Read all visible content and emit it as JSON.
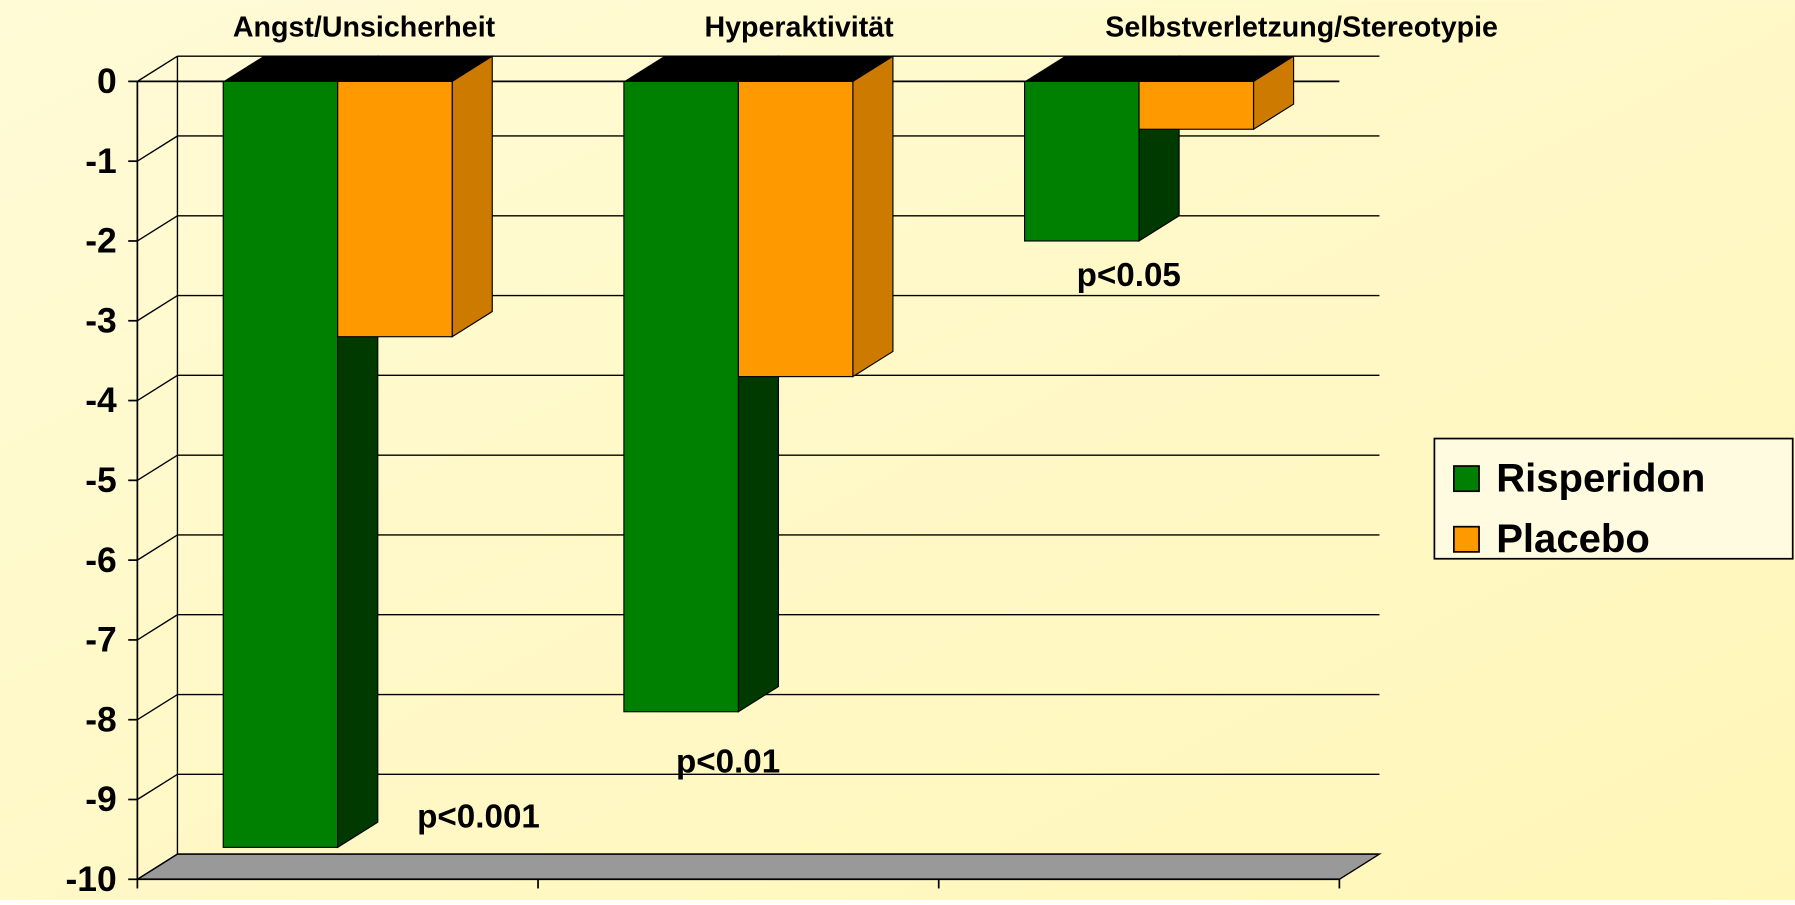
{
  "chart_data": {
    "type": "bar3d",
    "categories": [
      "Angst/Unsicherheit",
      "Hyperaktivität",
      "Selbstverletzung/Stereotypie"
    ],
    "series": [
      {
        "name": "Risperidon",
        "color": "#008000",
        "values": [
          -9.6,
          -7.9,
          -2.0
        ]
      },
      {
        "name": "Placebo",
        "color": "#ff9900",
        "values": [
          -3.2,
          -3.7,
          -0.6
        ]
      }
    ],
    "ylim": [
      -10,
      0
    ],
    "yticks": [
      0,
      -1,
      -2,
      -3,
      -4,
      -5,
      -6,
      -7,
      -8,
      -9,
      -10
    ],
    "grid": true,
    "legend": "right",
    "annotations": [
      "p<0.001",
      "p<0.01",
      "p<0.05"
    ]
  }
}
